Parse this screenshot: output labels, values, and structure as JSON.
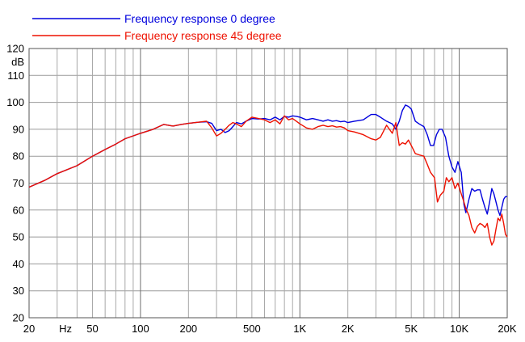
{
  "chart_data": {
    "type": "line",
    "title": "",
    "xlabel": "Hz",
    "ylabel": "dB",
    "x_scale": "log",
    "xlim": [
      20,
      20000
    ],
    "ylim": [
      20,
      120
    ],
    "grid": true,
    "legend_position": "top-left",
    "x_tick_labels": [
      {
        "value": 20,
        "label": "20"
      },
      {
        "value": 50,
        "label": "50"
      },
      {
        "value": 100,
        "label": "100"
      },
      {
        "value": 200,
        "label": "200"
      },
      {
        "value": 500,
        "label": "500"
      },
      {
        "value": 1000,
        "label": "1K"
      },
      {
        "value": 2000,
        "label": "2K"
      },
      {
        "value": 5000,
        "label": "5K"
      },
      {
        "value": 10000,
        "label": "10K"
      },
      {
        "value": 20000,
        "label": "20K"
      }
    ],
    "y_ticks": [
      20,
      30,
      40,
      50,
      60,
      70,
      80,
      90,
      100,
      110,
      120
    ],
    "series": [
      {
        "name": "Frequency response 0 degree",
        "color": "#0000dd",
        "points": [
          [
            20,
            68.5
          ],
          [
            25,
            71
          ],
          [
            30,
            73.5
          ],
          [
            40,
            76.5
          ],
          [
            50,
            80
          ],
          [
            60,
            82.5
          ],
          [
            70,
            84.5
          ],
          [
            80,
            86.5
          ],
          [
            100,
            88.5
          ],
          [
            120,
            90
          ],
          [
            140,
            91.8
          ],
          [
            160,
            91.2
          ],
          [
            180,
            91.8
          ],
          [
            200,
            92.2
          ],
          [
            230,
            92.6
          ],
          [
            260,
            92.8
          ],
          [
            280,
            92.2
          ],
          [
            300,
            89.5
          ],
          [
            320,
            90
          ],
          [
            340,
            88.8
          ],
          [
            360,
            89.5
          ],
          [
            380,
            91
          ],
          [
            400,
            92.5
          ],
          [
            430,
            92
          ],
          [
            460,
            93
          ],
          [
            500,
            94
          ],
          [
            550,
            93.8
          ],
          [
            600,
            94
          ],
          [
            650,
            93.5
          ],
          [
            700,
            94.5
          ],
          [
            750,
            93.5
          ],
          [
            800,
            94.8
          ],
          [
            850,
            94.5
          ],
          [
            900,
            95
          ],
          [
            950,
            94.8
          ],
          [
            1000,
            94.5
          ],
          [
            1100,
            93.5
          ],
          [
            1200,
            94
          ],
          [
            1300,
            93.5
          ],
          [
            1400,
            93
          ],
          [
            1500,
            93.5
          ],
          [
            1600,
            93
          ],
          [
            1700,
            93.2
          ],
          [
            1800,
            92.8
          ],
          [
            1900,
            93
          ],
          [
            2000,
            92.5
          ],
          [
            2200,
            93
          ],
          [
            2500,
            93.5
          ],
          [
            2800,
            95.5
          ],
          [
            3000,
            95.5
          ],
          [
            3200,
            94.5
          ],
          [
            3500,
            93
          ],
          [
            3800,
            92
          ],
          [
            4000,
            90
          ],
          [
            4200,
            93
          ],
          [
            4400,
            97
          ],
          [
            4600,
            99
          ],
          [
            4800,
            98.5
          ],
          [
            5000,
            97.5
          ],
          [
            5300,
            93
          ],
          [
            5600,
            92
          ],
          [
            6000,
            91
          ],
          [
            6300,
            88
          ],
          [
            6600,
            84
          ],
          [
            6900,
            84
          ],
          [
            7200,
            88
          ],
          [
            7500,
            90
          ],
          [
            7800,
            90
          ],
          [
            8200,
            87
          ],
          [
            8600,
            80
          ],
          [
            9000,
            76
          ],
          [
            9400,
            74
          ],
          [
            9800,
            78
          ],
          [
            10300,
            74
          ],
          [
            10700,
            62
          ],
          [
            11000,
            59
          ],
          [
            11500,
            64
          ],
          [
            12000,
            68
          ],
          [
            12500,
            67
          ],
          [
            13000,
            67.5
          ],
          [
            13500,
            67.5
          ],
          [
            14000,
            64
          ],
          [
            14500,
            61
          ],
          [
            15000,
            58.5
          ],
          [
            15500,
            63
          ],
          [
            16000,
            68
          ],
          [
            16500,
            66
          ],
          [
            17000,
            63
          ],
          [
            17500,
            60
          ],
          [
            18000,
            58
          ],
          [
            18500,
            61
          ],
          [
            19000,
            64
          ],
          [
            19500,
            65
          ],
          [
            20000,
            65
          ]
        ]
      },
      {
        "name": "Frequency response 45 degree",
        "color": "#ee1100",
        "points": [
          [
            20,
            68.5
          ],
          [
            25,
            71
          ],
          [
            30,
            73.5
          ],
          [
            40,
            76.5
          ],
          [
            50,
            80
          ],
          [
            60,
            82.5
          ],
          [
            70,
            84.5
          ],
          [
            80,
            86.5
          ],
          [
            100,
            88.5
          ],
          [
            120,
            90
          ],
          [
            140,
            91.8
          ],
          [
            160,
            91.2
          ],
          [
            180,
            91.8
          ],
          [
            200,
            92.2
          ],
          [
            230,
            92.6
          ],
          [
            260,
            93
          ],
          [
            280,
            90.5
          ],
          [
            300,
            87.5
          ],
          [
            320,
            88.5
          ],
          [
            340,
            90
          ],
          [
            360,
            91.5
          ],
          [
            380,
            92.5
          ],
          [
            400,
            92
          ],
          [
            430,
            91
          ],
          [
            460,
            93
          ],
          [
            500,
            94.5
          ],
          [
            550,
            94
          ],
          [
            600,
            93.5
          ],
          [
            650,
            92.5
          ],
          [
            700,
            93.5
          ],
          [
            750,
            92
          ],
          [
            800,
            95
          ],
          [
            850,
            93.5
          ],
          [
            900,
            94
          ],
          [
            950,
            93
          ],
          [
            1000,
            92
          ],
          [
            1100,
            90.5
          ],
          [
            1200,
            90
          ],
          [
            1300,
            91
          ],
          [
            1400,
            91.5
          ],
          [
            1500,
            91
          ],
          [
            1600,
            91.3
          ],
          [
            1700,
            90.8
          ],
          [
            1800,
            91
          ],
          [
            1900,
            90.5
          ],
          [
            2000,
            89.5
          ],
          [
            2200,
            89
          ],
          [
            2500,
            88
          ],
          [
            2800,
            86.5
          ],
          [
            3000,
            86
          ],
          [
            3200,
            87
          ],
          [
            3500,
            91.5
          ],
          [
            3800,
            88.5
          ],
          [
            4000,
            92.5
          ],
          [
            4200,
            84
          ],
          [
            4400,
            85
          ],
          [
            4600,
            84.5
          ],
          [
            4800,
            86
          ],
          [
            5000,
            84
          ],
          [
            5300,
            81
          ],
          [
            5600,
            80.5
          ],
          [
            6000,
            80
          ],
          [
            6300,
            77
          ],
          [
            6600,
            74
          ],
          [
            7000,
            72
          ],
          [
            7300,
            63
          ],
          [
            7600,
            65.5
          ],
          [
            8000,
            67
          ],
          [
            8300,
            72
          ],
          [
            8600,
            70.5
          ],
          [
            9000,
            72
          ],
          [
            9400,
            68
          ],
          [
            9800,
            70
          ],
          [
            10300,
            66
          ],
          [
            10700,
            63
          ],
          [
            11000,
            60.5
          ],
          [
            11500,
            58
          ],
          [
            12000,
            53.5
          ],
          [
            12500,
            51.5
          ],
          [
            13000,
            54
          ],
          [
            13500,
            55
          ],
          [
            14000,
            54.5
          ],
          [
            14500,
            53.5
          ],
          [
            15000,
            55
          ],
          [
            15500,
            50
          ],
          [
            16000,
            47
          ],
          [
            16500,
            48.5
          ],
          [
            17000,
            53
          ],
          [
            17500,
            57
          ],
          [
            18000,
            56
          ],
          [
            18500,
            58.5
          ],
          [
            19000,
            55
          ],
          [
            19500,
            51
          ],
          [
            20000,
            50
          ]
        ]
      }
    ]
  }
}
